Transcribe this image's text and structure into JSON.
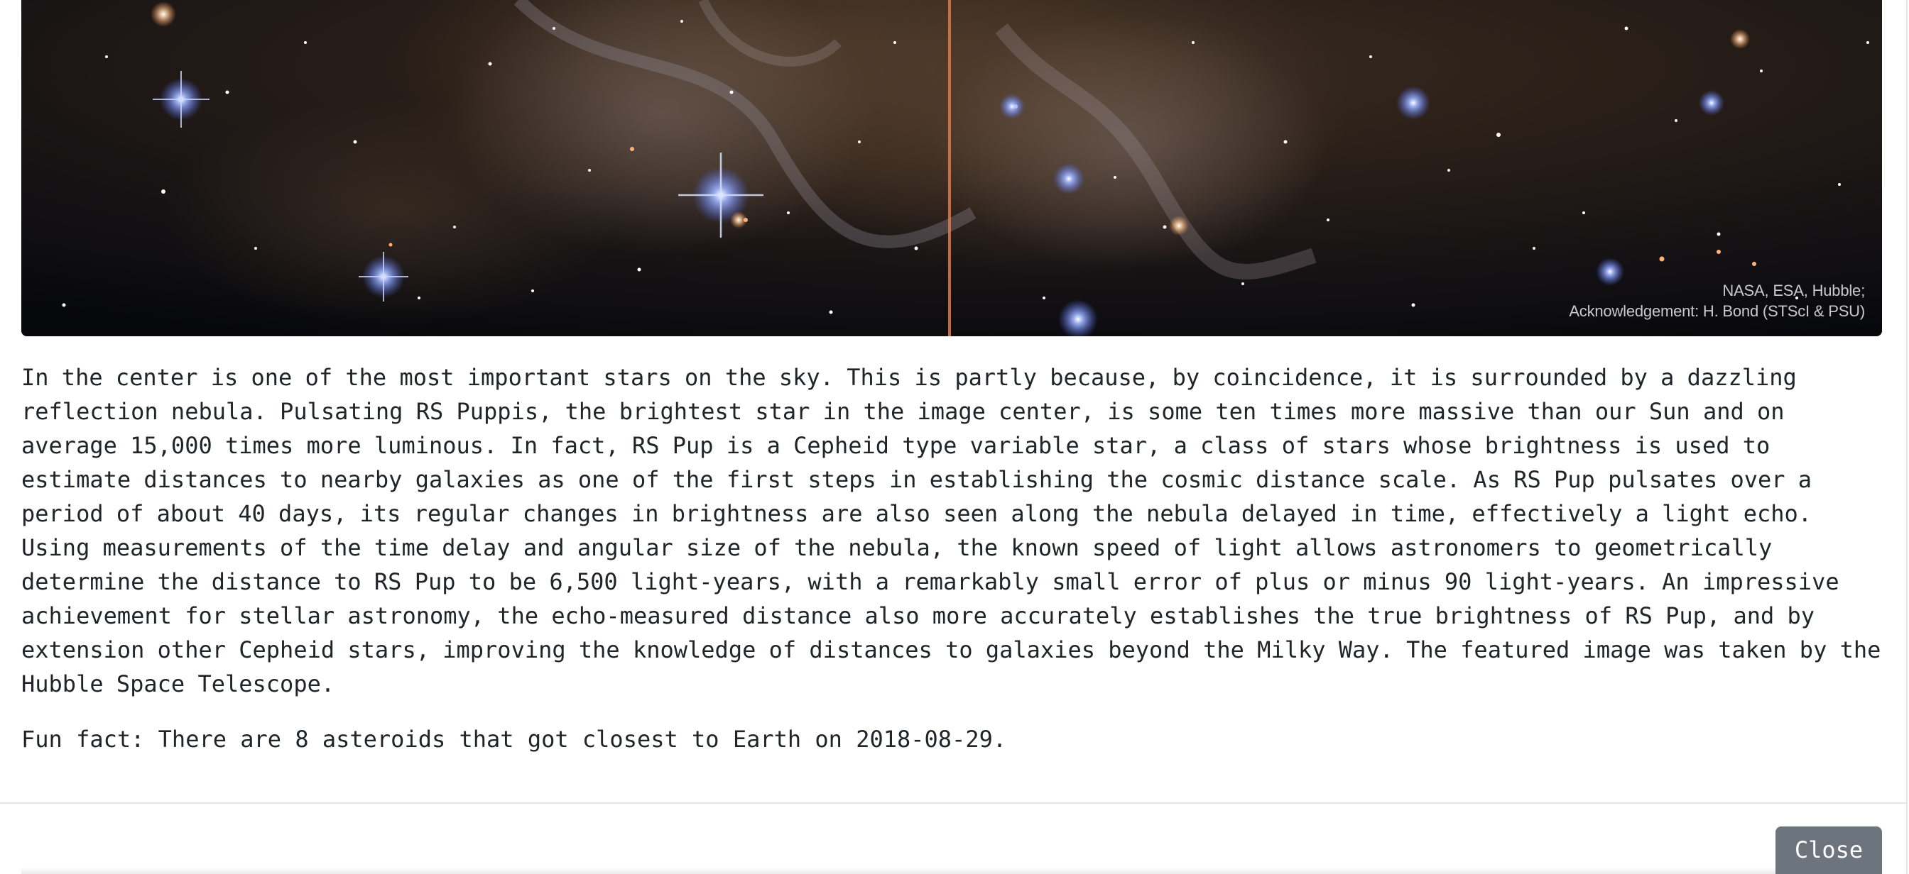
{
  "image": {
    "alt": "RS Puppis reflection nebula",
    "credit_line1": "NASA, ESA, Hubble;",
    "credit_line2": "Acknowledgement: H. Bond (STScI & PSU)"
  },
  "description": "In the center is one of the most important stars on the sky. This is partly because, by coincidence, it is surrounded by a dazzling reflection nebula. Pulsating RS Puppis, the brightest star in the image center, is some ten times more massive than our Sun and on average 15,000 times more luminous. In fact, RS Pup is a Cepheid type variable star, a class of stars whose brightness is used to estimate distances to nearby galaxies as one of the first steps in establishing the cosmic distance scale. As RS Pup pulsates over a period of about 40 days, its regular changes in brightness are also seen along the nebula delayed in time, effectively a light echo. Using measurements of the time delay and angular size of the nebula, the known speed of light allows astronomers to geometrically determine the distance to RS Pup to be 6,500 light-years, with a remarkably small error of plus or minus 90 light-years. An impressive achievement for stellar astronomy, the echo-measured distance also more accurately establishes the true brightness of RS Pup, and by extension other Cepheid stars, improving the knowledge of distances to galaxies beyond the Milky Way. The featured image was taken by the Hubble Space Telescope.",
  "fun_fact": "Fun fact: There are 8 asteroids that got closest to Earth on 2018-08-29.",
  "footer": {
    "close_label": "Close"
  },
  "colors": {
    "button_bg": "#6c757d",
    "text": "#212529"
  }
}
